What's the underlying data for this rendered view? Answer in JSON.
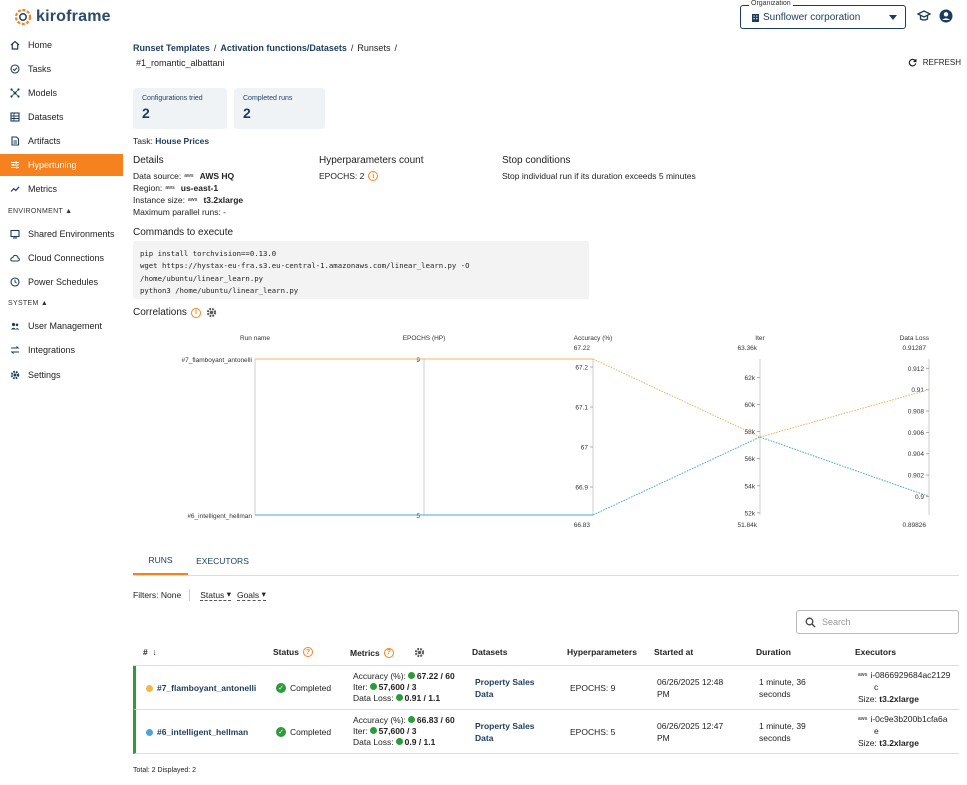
{
  "app": {
    "name": "kiroframe"
  },
  "org": {
    "label": "Organization",
    "value": "Sunflower corporation"
  },
  "sidebar": {
    "items": [
      {
        "label": "Home",
        "icon": "home-icon"
      },
      {
        "label": "Tasks",
        "icon": "tasks-icon"
      },
      {
        "label": "Models",
        "icon": "models-icon"
      },
      {
        "label": "Datasets",
        "icon": "datasets-icon"
      },
      {
        "label": "Artifacts",
        "icon": "artifacts-icon"
      },
      {
        "label": "Hypertuning",
        "icon": "hypertuning-icon"
      },
      {
        "label": "Metrics",
        "icon": "metrics-icon"
      },
      {
        "label": "Shared Environments",
        "icon": "environment-icon"
      },
      {
        "label": "Cloud Connections",
        "icon": "cloud-icon"
      },
      {
        "label": "Power Schedules",
        "icon": "clock-icon"
      },
      {
        "label": "User Management",
        "icon": "users-icon"
      },
      {
        "label": "Integrations",
        "icon": "integrations-icon"
      },
      {
        "label": "Settings",
        "icon": "gear-icon"
      }
    ],
    "sections": {
      "environment": "ENVIRONMENT",
      "system": "SYSTEM"
    }
  },
  "breadcrumb": {
    "items": [
      "Runset Templates",
      "Activation functions/Datasets",
      "Runsets"
    ],
    "separator": "/"
  },
  "run_title": "#1_romantic_albattani",
  "refresh_label": "REFRESH",
  "cards": [
    {
      "label": "Configurations tried",
      "value": "2"
    },
    {
      "label": "Completed runs",
      "value": "2"
    }
  ],
  "task": {
    "label": "Task:",
    "value": "House Prices"
  },
  "details": {
    "title": "Details",
    "data_source_label": "Data source:",
    "data_source_value": "AWS HQ",
    "region_label": "Region:",
    "region_value": "us-east-1",
    "instance_label": "Instance size:",
    "instance_value": "t3.2xlarge",
    "parallel_label": "Maximum parallel runs:",
    "parallel_value": "-",
    "aws_badge": "aws"
  },
  "hyperparams": {
    "title": "Hyperparameters count",
    "value": "EPOCHS: 2"
  },
  "stop": {
    "title": "Stop conditions",
    "value": "Stop individual run if its duration exceeds 5 minutes"
  },
  "commands": {
    "title": "Commands to execute",
    "lines": [
      "pip install torchvision==0.13.0",
      "wget https://hystax-eu-fra.s3.eu-central-1.amazonaws.com/linear_learn.py -O /home/ubuntu/linear_learn.py",
      "python3 /home/ubuntu/linear_learn.py"
    ]
  },
  "correlations": {
    "title": "Correlations"
  },
  "chart_data": {
    "type": "parallel-coordinates",
    "axes": [
      {
        "name": "Run name",
        "ticks": [
          "#7_flamboyant_antonelli",
          "#6_intelligent_hellman"
        ]
      },
      {
        "name": "EPOCHS (HP)",
        "min": 5,
        "max": 9,
        "ticks": [
          "9",
          "5"
        ]
      },
      {
        "name": "Accuracy (%)",
        "min": 66.83,
        "max": 67.22,
        "max_label": "67.22",
        "min_label": "66.83",
        "ticks": [
          "67.2",
          "67.1",
          "67",
          "66.9"
        ]
      },
      {
        "name": "Iter",
        "min": 51840,
        "max": 63360,
        "max_label": "63.36k",
        "min_label": "51.84k",
        "ticks": [
          "62k",
          "60k",
          "58k",
          "56k",
          "54k",
          "52k"
        ]
      },
      {
        "name": "Data Loss",
        "min": 0.89826,
        "max": 0.91287,
        "max_label": "0.91287",
        "min_label": "0.89826",
        "ticks": [
          "0.912",
          "0.91",
          "0.908",
          "0.906",
          "0.904",
          "0.902",
          "0.9"
        ]
      }
    ],
    "series": [
      {
        "name": "#7_flamboyant_antonelli",
        "color": "#f2b46a",
        "values": [
          "#7_flamboyant_antonelli",
          9,
          67.22,
          57600,
          0.91
        ]
      },
      {
        "name": "#6_intelligent_hellman",
        "color": "#4fa3d8",
        "values": [
          "#6_intelligent_hellman",
          5,
          66.83,
          57600,
          0.9
        ]
      }
    ]
  },
  "tabs": [
    {
      "label": "RUNS"
    },
    {
      "label": "EXECUTORS"
    }
  ],
  "filters": {
    "label": "Filters:",
    "none": "None",
    "status": "Status",
    "goals": "Goals"
  },
  "search": {
    "placeholder": "Search"
  },
  "table": {
    "headers": {
      "num": "#",
      "status": "Status",
      "metrics": "Metrics",
      "datasets": "Datasets",
      "hyper": "Hyperparameters",
      "started": "Started at",
      "duration": "Duration",
      "executors": "Executors"
    },
    "rows": [
      {
        "name": "#7_flamboyant_antonelli",
        "dot_color": "#f5b942",
        "status": "Completed",
        "m1_label": "Accuracy (%):",
        "m1_value": "67.22 / 60",
        "m2_label": "Iter:",
        "m2_value": "57,600 / 3",
        "m3_label": "Data Loss:",
        "m3_value": "0.91 / 1.1",
        "dataset_1": "Property Sales",
        "dataset_2": "Data",
        "hyper": "EPOCHS: 9",
        "started_1": "06/26/2025 12:48",
        "started_2": "PM",
        "duration_1": "1 minute, 36",
        "duration_2": "seconds",
        "executor_1": "i-0866929684ac2129",
        "executor_2": "c",
        "size_label": "Size:",
        "size_value": "t3.2xlarge"
      },
      {
        "name": "#6_intelligent_hellman",
        "dot_color": "#4fa3d8",
        "status": "Completed",
        "m1_label": "Accuracy (%):",
        "m1_value": "66.83 / 60",
        "m2_label": "Iter:",
        "m2_value": "57,600 / 3",
        "m3_label": "Data Loss:",
        "m3_value": "0.9 / 1.1",
        "dataset_1": "Property Sales",
        "dataset_2": "Data",
        "hyper": "EPOCHS: 5",
        "started_1": "06/26/2025 12:47",
        "started_2": "PM",
        "duration_1": "1 minute, 39",
        "duration_2": "seconds",
        "executor_1": "i-0c9e3b200b1cfa6a",
        "executor_2": "e",
        "size_label": "Size:",
        "size_value": "t3.2xlarge"
      }
    ]
  },
  "totals": "Total: 2  Displayed: 2",
  "colors": {
    "accent": "#f5821f",
    "brand": "#1c3c5e",
    "success": "#2e9a3a"
  }
}
